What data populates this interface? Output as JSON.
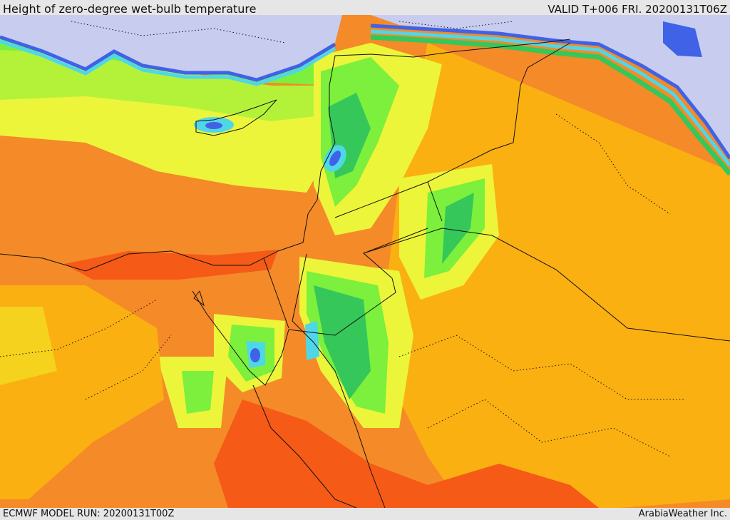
{
  "header": {
    "title": "Height of zero-degree wet-bulb temperature",
    "valid": "VALID T+006 FRI. 20200131T06Z"
  },
  "footer": {
    "model_run": "ECMWF MODEL RUN: 20200131T00Z",
    "credit": "ArabiaWeather Inc."
  },
  "colors": {
    "sea_blue": "#c8cdf0",
    "blue": "#3f62e6",
    "cyan": "#4fd7e8",
    "mid_green": "#36c75a",
    "bright_green": "#7cf03c",
    "light_green": "#b4f23a",
    "yellow": "#ecf53a",
    "yellow_orange": "#f5d21e",
    "amber": "#fbb012",
    "orange": "#f58a28",
    "deep_orange": "#f55a17"
  }
}
